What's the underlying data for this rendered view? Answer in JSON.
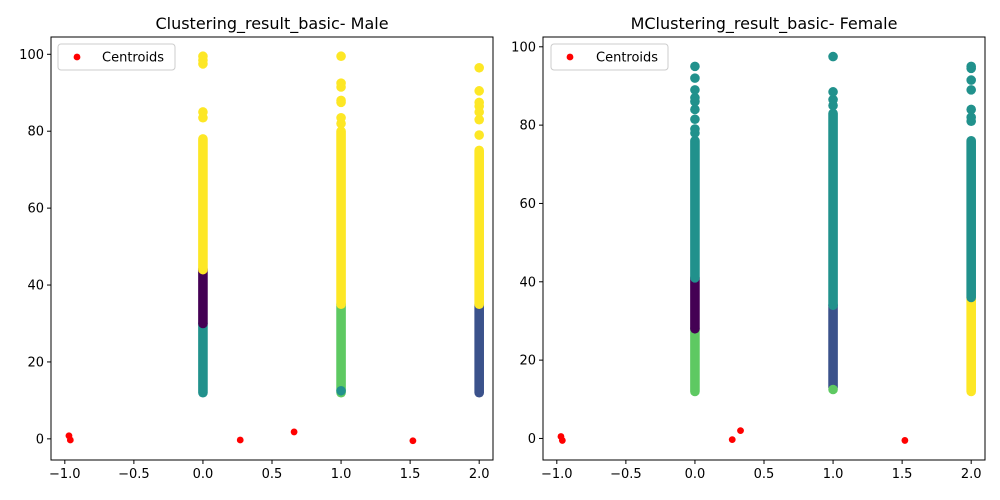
{
  "chart_data": [
    {
      "type": "scatter",
      "title": "Clustering_result_basic- Male",
      "xlabel": "",
      "ylabel": "",
      "xlim": [
        -1.1,
        2.1
      ],
      "ylim": [
        -5.5,
        104.5
      ],
      "xticks": [
        -1.0,
        -0.5,
        0.0,
        0.5,
        1.0,
        1.5,
        2.0
      ],
      "xtick_labels": [
        "−1.0",
        "−0.5",
        "0.0",
        "0.5",
        "1.0",
        "1.5",
        "2.0"
      ],
      "yticks": [
        0,
        20,
        40,
        60,
        80,
        100
      ],
      "ytick_labels": [
        "0",
        "20",
        "40",
        "60",
        "80",
        "100"
      ],
      "grid": false,
      "legend": {
        "position": "top-left",
        "entries": [
          "Centroids"
        ]
      },
      "clusters": [
        {
          "x": 0,
          "y_range": [
            12,
            30
          ],
          "color": "#21918c"
        },
        {
          "x": 0,
          "y_range": [
            30,
            44
          ],
          "color": "#440154"
        },
        {
          "x": 0,
          "y_range": [
            44,
            78
          ],
          "color": "#fde725"
        },
        {
          "x": 1,
          "y_range": [
            12,
            35
          ],
          "color": "#5ec962"
        },
        {
          "x": 1,
          "y_range": [
            35,
            80
          ],
          "color": "#fde725"
        },
        {
          "x": 2,
          "y_range": [
            12,
            35
          ],
          "color": "#3b528b"
        },
        {
          "x": 2,
          "y_range": [
            35,
            75
          ],
          "color": "#fde725"
        }
      ],
      "points": [
        {
          "x": 0,
          "y": 83.5,
          "color": "#fde725"
        },
        {
          "x": 0,
          "y": 85,
          "color": "#fde725"
        },
        {
          "x": 0,
          "y": 97.5,
          "color": "#fde725"
        },
        {
          "x": 0,
          "y": 98.5,
          "color": "#fde725"
        },
        {
          "x": 0,
          "y": 99.5,
          "color": "#fde725"
        },
        {
          "x": 1,
          "y": 12.5,
          "color": "#21918c"
        },
        {
          "x": 1,
          "y": 82,
          "color": "#fde725"
        },
        {
          "x": 1,
          "y": 83.5,
          "color": "#fde725"
        },
        {
          "x": 1,
          "y": 87.5,
          "color": "#fde725"
        },
        {
          "x": 1,
          "y": 88,
          "color": "#fde725"
        },
        {
          "x": 1,
          "y": 91.5,
          "color": "#fde725"
        },
        {
          "x": 1,
          "y": 92.5,
          "color": "#fde725"
        },
        {
          "x": 1,
          "y": 99.5,
          "color": "#fde725"
        },
        {
          "x": 2,
          "y": 79,
          "color": "#fde725"
        },
        {
          "x": 2,
          "y": 83,
          "color": "#fde725"
        },
        {
          "x": 2,
          "y": 85,
          "color": "#fde725"
        },
        {
          "x": 2,
          "y": 86.5,
          "color": "#fde725"
        },
        {
          "x": 2,
          "y": 87.5,
          "color": "#fde725"
        },
        {
          "x": 2,
          "y": 90.5,
          "color": "#fde725"
        },
        {
          "x": 2,
          "y": 96.5,
          "color": "#fde725"
        }
      ],
      "centroids": {
        "name": "Centroids",
        "color": "#ff0000",
        "x": [
          -0.97,
          -0.96,
          0.27,
          0.66,
          1.52
        ],
        "y": [
          0.8,
          -0.3,
          -0.3,
          1.8,
          -0.5
        ]
      }
    },
    {
      "type": "scatter",
      "title": "MClustering_result_basic- Female",
      "xlabel": "",
      "ylabel": "",
      "xlim": [
        -1.1,
        2.1
      ],
      "ylim": [
        -5.5,
        102.5
      ],
      "xticks": [
        -1.0,
        -0.5,
        0.0,
        0.5,
        1.0,
        1.5,
        2.0
      ],
      "xtick_labels": [
        "−1.0",
        "−0.5",
        "0.0",
        "0.5",
        "1.0",
        "1.5",
        "2.0"
      ],
      "yticks": [
        0,
        20,
        40,
        60,
        80,
        100
      ],
      "ytick_labels": [
        "0",
        "20",
        "40",
        "60",
        "80",
        "100"
      ],
      "grid": false,
      "legend": {
        "position": "top-left",
        "entries": [
          "Centroids"
        ]
      },
      "clusters": [
        {
          "x": 0,
          "y_range": [
            12,
            28
          ],
          "color": "#5ec962"
        },
        {
          "x": 0,
          "y_range": [
            28,
            41
          ],
          "color": "#440154"
        },
        {
          "x": 0,
          "y_range": [
            41,
            76
          ],
          "color": "#21918c"
        },
        {
          "x": 1,
          "y_range": [
            13,
            34
          ],
          "color": "#3b528b"
        },
        {
          "x": 1,
          "y_range": [
            34,
            83
          ],
          "color": "#21918c"
        },
        {
          "x": 2,
          "y_range": [
            12,
            36
          ],
          "color": "#fde725"
        },
        {
          "x": 2,
          "y_range": [
            36,
            76
          ],
          "color": "#21918c"
        }
      ],
      "points": [
        {
          "x": 0,
          "y": 78,
          "color": "#21918c"
        },
        {
          "x": 0,
          "y": 79,
          "color": "#21918c"
        },
        {
          "x": 0,
          "y": 81.5,
          "color": "#21918c"
        },
        {
          "x": 0,
          "y": 84,
          "color": "#21918c"
        },
        {
          "x": 0,
          "y": 86,
          "color": "#21918c"
        },
        {
          "x": 0,
          "y": 87,
          "color": "#21918c"
        },
        {
          "x": 0,
          "y": 89,
          "color": "#21918c"
        },
        {
          "x": 0,
          "y": 92,
          "color": "#21918c"
        },
        {
          "x": 0,
          "y": 95,
          "color": "#21918c"
        },
        {
          "x": 1,
          "y": 12.5,
          "color": "#5ec962"
        },
        {
          "x": 1,
          "y": 85,
          "color": "#21918c"
        },
        {
          "x": 1,
          "y": 86.5,
          "color": "#21918c"
        },
        {
          "x": 1,
          "y": 88.5,
          "color": "#21918c"
        },
        {
          "x": 1,
          "y": 97.5,
          "color": "#21918c"
        },
        {
          "x": 2,
          "y": 81,
          "color": "#21918c"
        },
        {
          "x": 2,
          "y": 82,
          "color": "#21918c"
        },
        {
          "x": 2,
          "y": 84,
          "color": "#21918c"
        },
        {
          "x": 2,
          "y": 89,
          "color": "#21918c"
        },
        {
          "x": 2,
          "y": 91.5,
          "color": "#21918c"
        },
        {
          "x": 2,
          "y": 94.5,
          "color": "#21918c"
        },
        {
          "x": 2,
          "y": 95,
          "color": "#21918c"
        }
      ],
      "centroids": {
        "name": "Centroids",
        "color": "#ff0000",
        "x": [
          -0.97,
          -0.96,
          0.27,
          0.33,
          1.52
        ],
        "y": [
          0.5,
          -0.5,
          -0.3,
          2.0,
          -0.5
        ]
      }
    }
  ]
}
